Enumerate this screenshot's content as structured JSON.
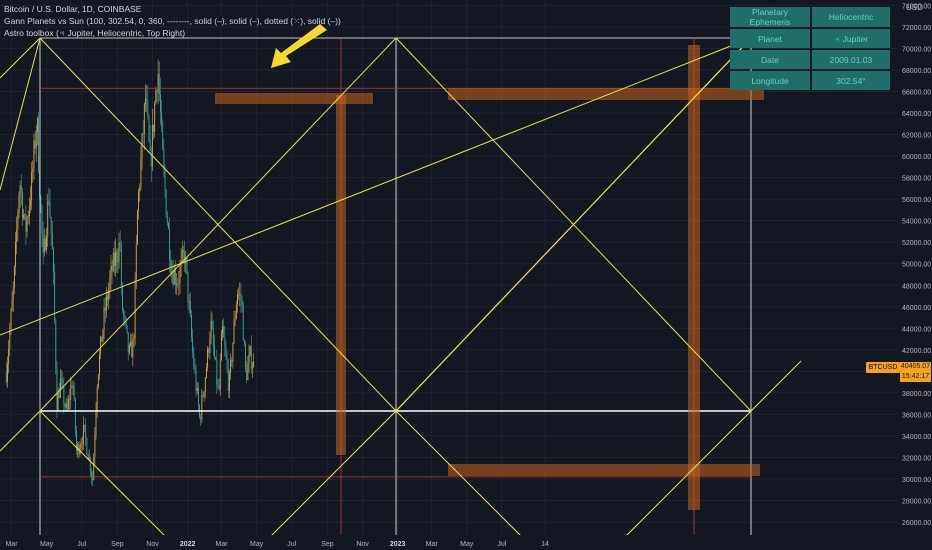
{
  "legend": {
    "line1": "Bitcoin / U.S. Dollar, 1D, COINBASE",
    "line2": "Gann Planets vs Sun (100, 302.54, 0, 360, --------, solid (–), solid (–), dotted (⁙), solid (–))",
    "line3": "Astro toolbox (♃ Jupiter, Heliocentric, Top Right)"
  },
  "astro_table": {
    "rows": [
      {
        "key": "Planetary Ephemeris",
        "value": "Heliocentric"
      },
      {
        "key": "Planet",
        "value": "♃ Jupiter"
      },
      {
        "key": "Date",
        "value": "2009.01.03"
      },
      {
        "key": "Longitude",
        "value": "302.54°"
      }
    ]
  },
  "currency": "USD",
  "symbol_tag": "BTCUSD",
  "price_tag": {
    "price": "40405.07",
    "countdown": "15:42:17"
  },
  "colors": {
    "background": "#131722",
    "gann_lines": "#e8e24a",
    "frame_lines": "#ffffff",
    "red_lines": "#c0392b",
    "orange_band": "#c8641e",
    "candle_up": "#d9a441",
    "candle_down": "#3aa6a0",
    "price_tag": "#f7a21b",
    "arrow": "#f6d92e"
  },
  "chart_data": {
    "type": "candlestick",
    "symbol": "BTCUSD",
    "x_tick_labels": [
      "Mar",
      "May",
      "Jul",
      "Sep",
      "Nov",
      "2022",
      "Mar",
      "May",
      "Jul",
      "Sep",
      "Nov",
      "2023",
      "Mar",
      "May",
      "Jul",
      "14"
    ],
    "y_tick_labels": [
      26000,
      28000,
      30000,
      32000,
      34000,
      36000,
      38000,
      40000,
      42000,
      44000,
      46000,
      48000,
      50000,
      52000,
      54000,
      56000,
      58000,
      60000,
      62000,
      64000,
      66000,
      68000,
      70000,
      72000,
      74000
    ],
    "ylim": [
      24800,
      74500
    ],
    "last_price": 40405.07,
    "series": [
      {
        "name": "BTCUSD",
        "points": [
          {
            "date": "2021-02-20",
            "close": 40000
          },
          {
            "date": "2021-03-05",
            "close": 48000
          },
          {
            "date": "2021-03-15",
            "close": 58000
          },
          {
            "date": "2021-03-25",
            "close": 53000
          },
          {
            "date": "2021-04-05",
            "close": 57500
          },
          {
            "date": "2021-04-14",
            "close": 63500
          },
          {
            "date": "2021-04-25",
            "close": 50000
          },
          {
            "date": "2021-05-05",
            "close": 56500
          },
          {
            "date": "2021-05-12",
            "close": 50000
          },
          {
            "date": "2021-05-19",
            "close": 37000
          },
          {
            "date": "2021-05-25",
            "close": 39000
          },
          {
            "date": "2021-06-05",
            "close": 36000
          },
          {
            "date": "2021-06-15",
            "close": 39500
          },
          {
            "date": "2021-06-22",
            "close": 32500
          },
          {
            "date": "2021-07-05",
            "close": 34500
          },
          {
            "date": "2021-07-20",
            "close": 30000
          },
          {
            "date": "2021-07-28",
            "close": 39500
          },
          {
            "date": "2021-08-10",
            "close": 45500
          },
          {
            "date": "2021-08-23",
            "close": 49500
          },
          {
            "date": "2021-09-06",
            "close": 52000
          },
          {
            "date": "2021-09-08",
            "close": 46500
          },
          {
            "date": "2021-09-21",
            "close": 41500
          },
          {
            "date": "2021-09-29",
            "close": 42500
          },
          {
            "date": "2021-10-06",
            "close": 55000
          },
          {
            "date": "2021-10-20",
            "close": 65500
          },
          {
            "date": "2021-10-28",
            "close": 59000
          },
          {
            "date": "2021-11-10",
            "close": 68500
          },
          {
            "date": "2021-11-20",
            "close": 58500
          },
          {
            "date": "2021-12-04",
            "close": 49500
          },
          {
            "date": "2021-12-15",
            "close": 48500
          },
          {
            "date": "2021-12-27",
            "close": 51000
          },
          {
            "date": "2022-01-10",
            "close": 41500
          },
          {
            "date": "2022-01-22",
            "close": 35500
          },
          {
            "date": "2022-02-05",
            "close": 41500
          },
          {
            "date": "2022-02-10",
            "close": 44500
          },
          {
            "date": "2022-02-24",
            "close": 37500
          },
          {
            "date": "2022-03-02",
            "close": 44000
          },
          {
            "date": "2022-03-14",
            "close": 38500
          },
          {
            "date": "2022-03-28",
            "close": 47500
          },
          {
            "date": "2022-04-05",
            "close": 46500
          },
          {
            "date": "2022-04-12",
            "close": 39500
          },
          {
            "date": "2022-04-20",
            "close": 41500
          },
          {
            "date": "2022-04-26",
            "close": 40405
          }
        ]
      }
    ]
  }
}
